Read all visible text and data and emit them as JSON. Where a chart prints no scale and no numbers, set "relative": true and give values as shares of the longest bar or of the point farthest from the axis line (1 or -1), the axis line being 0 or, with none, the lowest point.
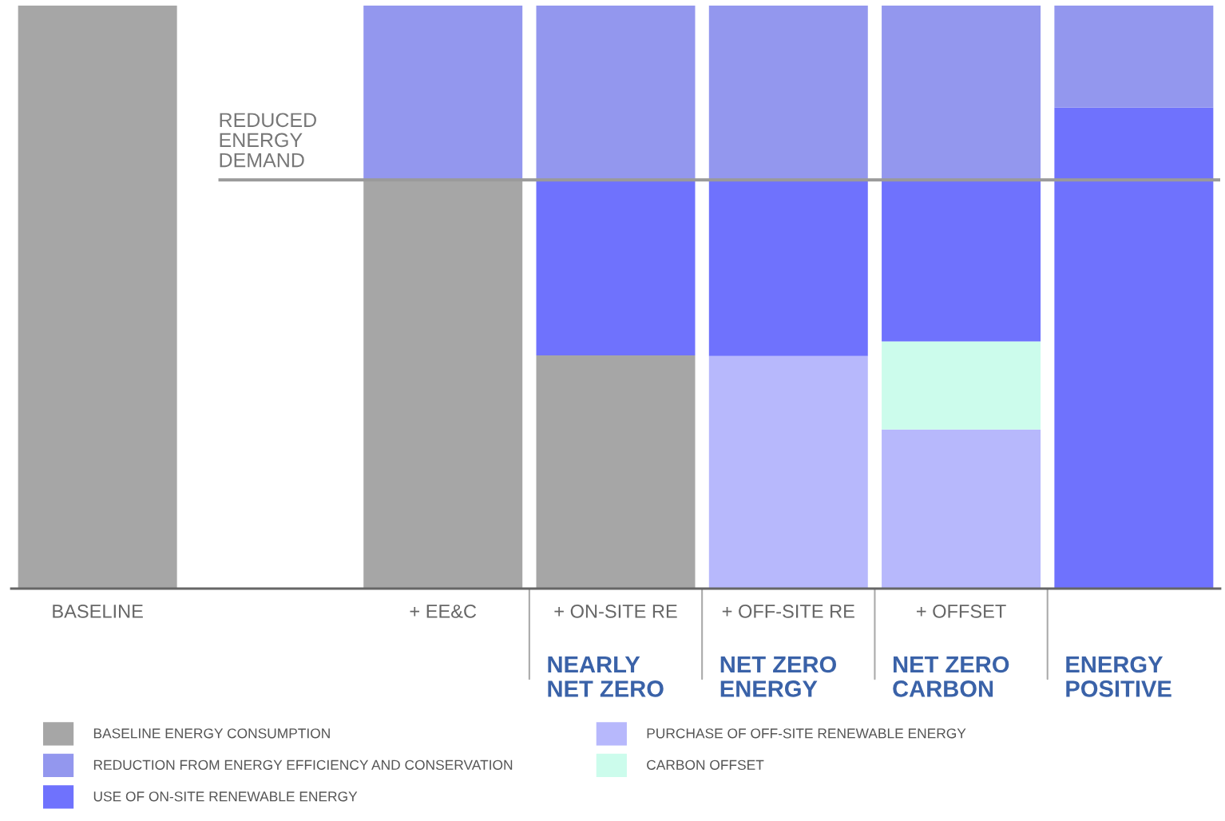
{
  "chart_data": {
    "type": "bar",
    "stacked": true,
    "relative": true,
    "legend": "bottom",
    "categories": [
      "BASELINE",
      null,
      "+ EE&C",
      "+ ON-SITE RE",
      "+ OFF-SITE RE",
      "+ OFFSET",
      null
    ],
    "series": [
      {
        "name": "BASELINE ENERGY CONSUMPTION",
        "color": "#a6a6a6",
        "values": [
          1,
          null,
          0.701,
          0.4,
          null,
          null,
          null
        ]
      },
      {
        "name": "PURCHASE OF OFF-SITE RENEWABLE ENERGY",
        "color": "#b7b8fc",
        "values": [
          null,
          null,
          null,
          null,
          0.399,
          0.273,
          null
        ]
      },
      {
        "name": "CARBON OFFSET",
        "color": "#ccfcec",
        "values": [
          null,
          null,
          null,
          null,
          null,
          0.151,
          null
        ]
      },
      {
        "name": "USE OF ON-SITE RENEWABLE ENERGY",
        "color": "#6f72fd",
        "values": [
          null,
          null,
          null,
          0.301,
          0.302,
          0.277,
          0.825
        ]
      },
      {
        "name": "REDUCTION FROM ENERGY EFFICIENCY AND CONSERVATION",
        "color": "#9397ee",
        "values": [
          null,
          null,
          0.299,
          0.299,
          0.299,
          0.299,
          0.175
        ]
      }
    ],
    "ref_lines": [
      {
        "axis": "y",
        "value": 0.701,
        "label": "REDUCED\nENERGY\nDEMAND",
        "color": "#9a9a9a"
      }
    ],
    "annotations": [
      "NEARLY\nNET ZERO",
      "NET ZERO\nENERGY",
      "NET ZERO\nCARBON",
      "ENERGY\nPOSITIVE"
    ]
  }
}
